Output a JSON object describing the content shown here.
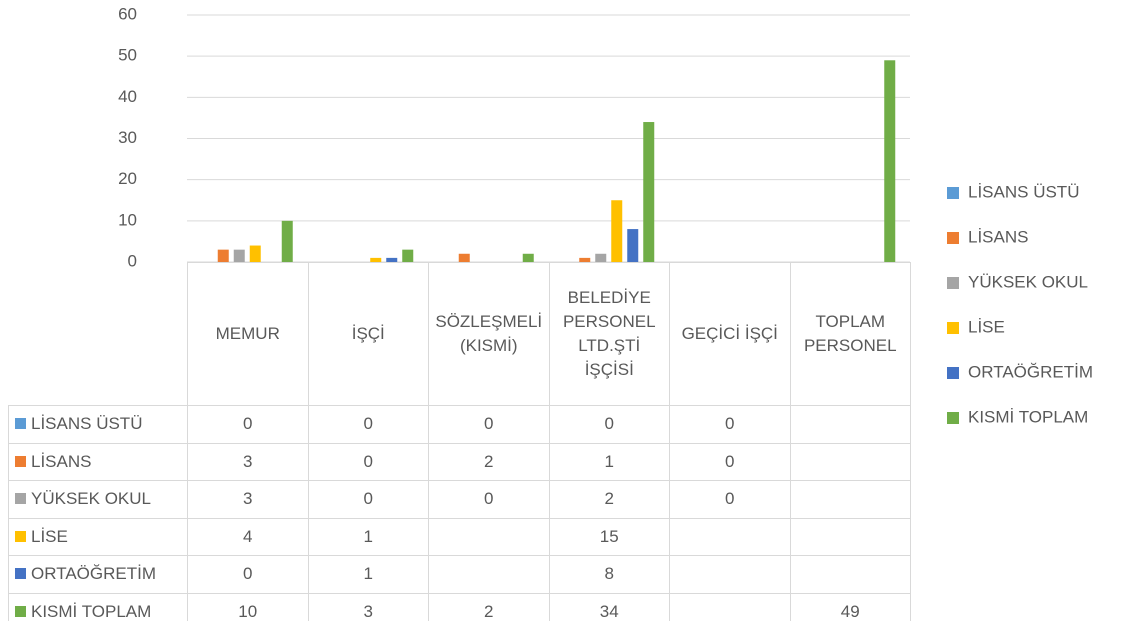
{
  "chart_data": {
    "type": "bar",
    "categories": [
      "MEMUR",
      "İŞÇİ",
      "SÖZLEŞMELİ (KISMİ)",
      "BELEDİYE PERSONEL LTD.ŞTİ İŞÇİSİ",
      "GEÇİCİ İŞÇİ",
      "TOPLAM PERSONEL"
    ],
    "series": [
      {
        "name": "LİSANS ÜSTÜ",
        "color": "#5b9bd5",
        "values": [
          0,
          0,
          0,
          0,
          0,
          null
        ]
      },
      {
        "name": "LİSANS",
        "color": "#ed7d31",
        "values": [
          3,
          0,
          2,
          1,
          0,
          null
        ]
      },
      {
        "name": "YÜKSEK OKUL",
        "color": "#a5a5a5",
        "values": [
          3,
          0,
          0,
          2,
          0,
          null
        ]
      },
      {
        "name": "LİSE",
        "color": "#ffc000",
        "values": [
          4,
          1,
          null,
          15,
          null,
          null
        ]
      },
      {
        "name": "ORTAÖĞRETİM",
        "color": "#4472c4",
        "values": [
          0,
          1,
          null,
          8,
          null,
          null
        ]
      },
      {
        "name": "KISMİ TOPLAM",
        "color": "#70ad47",
        "values": [
          10,
          3,
          2,
          34,
          null,
          49
        ]
      }
    ],
    "ylim": [
      0,
      60
    ],
    "yticks": [
      0,
      10,
      20,
      30,
      40,
      50,
      60
    ],
    "grid": true,
    "legend": "right"
  }
}
